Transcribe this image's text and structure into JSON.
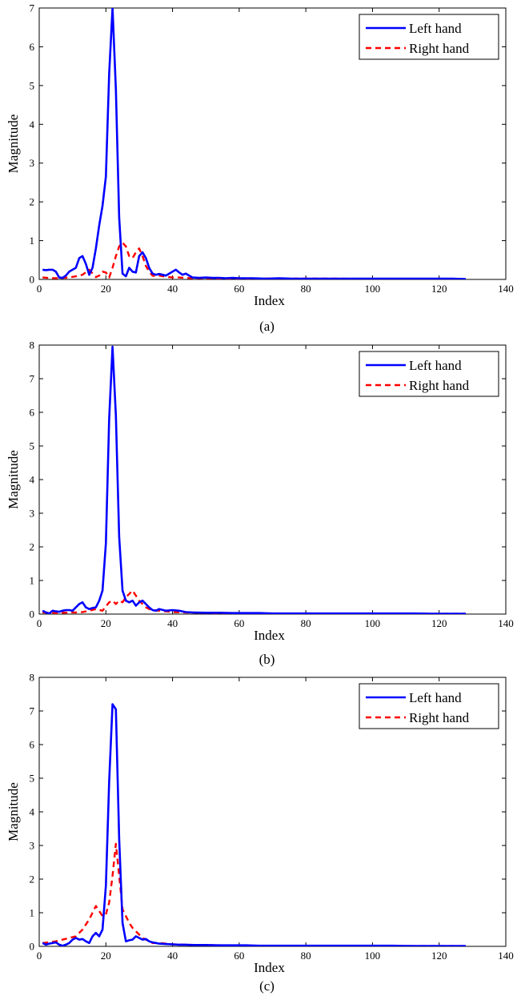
{
  "chart_data": [
    {
      "type": "line",
      "caption": "(a)",
      "xlabel": "Index",
      "ylabel": "Magnitude",
      "xlim": [
        0,
        140
      ],
      "ylim": [
        0,
        7
      ],
      "xticks": [
        0,
        20,
        40,
        60,
        80,
        100,
        120,
        140
      ],
      "yticks": [
        0,
        1,
        2,
        3,
        4,
        5,
        6,
        7
      ],
      "grid": false,
      "legend_position": "top-right",
      "series": [
        {
          "name": "Left hand",
          "color": "#0000ff",
          "style": "solid",
          "x": [
            1,
            2,
            3,
            4,
            5,
            6,
            7,
            8,
            9,
            10,
            11,
            12,
            13,
            14,
            15,
            16,
            17,
            18,
            19,
            20,
            21,
            22,
            23,
            24,
            25,
            26,
            27,
            28,
            29,
            30,
            31,
            32,
            33,
            34,
            35,
            36,
            37,
            38,
            39,
            40,
            41,
            42,
            43,
            44,
            45,
            46,
            48,
            50,
            52,
            54,
            56,
            58,
            60,
            64,
            68,
            72,
            76,
            80,
            84,
            88,
            92,
            96,
            100,
            104,
            108,
            112,
            116,
            120,
            124,
            128
          ],
          "y": [
            0.25,
            0.24,
            0.25,
            0.25,
            0.2,
            0.05,
            0.04,
            0.1,
            0.2,
            0.25,
            0.3,
            0.55,
            0.6,
            0.4,
            0.12,
            0.3,
            0.8,
            1.4,
            1.9,
            2.65,
            5.3,
            7.0,
            4.9,
            1.6,
            0.15,
            0.08,
            0.3,
            0.2,
            0.18,
            0.6,
            0.7,
            0.55,
            0.3,
            0.15,
            0.12,
            0.14,
            0.12,
            0.1,
            0.15,
            0.2,
            0.25,
            0.18,
            0.12,
            0.15,
            0.1,
            0.05,
            0.04,
            0.05,
            0.04,
            0.04,
            0.03,
            0.04,
            0.03,
            0.03,
            0.02,
            0.03,
            0.02,
            0.02,
            0.02,
            0.02,
            0.02,
            0.02,
            0.02,
            0.02,
            0.02,
            0.02,
            0.02,
            0.02,
            0.02,
            0.01
          ]
        },
        {
          "name": "Right hand",
          "color": "#ff0000",
          "style": "dashed",
          "x": [
            1,
            3,
            5,
            7,
            9,
            11,
            13,
            15,
            17,
            18,
            19,
            20,
            21,
            22,
            23,
            24,
            25,
            26,
            27,
            28,
            29,
            30,
            31,
            32,
            33,
            34,
            35,
            36,
            38,
            40,
            42,
            44,
            46,
            50,
            55,
            60,
            70,
            80,
            90,
            100,
            110,
            120,
            128
          ],
          "y": [
            0.05,
            0.04,
            0.03,
            0.04,
            0.05,
            0.08,
            0.12,
            0.25,
            0.06,
            0.1,
            0.2,
            0.18,
            0.05,
            0.3,
            0.6,
            0.85,
            0.95,
            0.85,
            0.6,
            0.55,
            0.7,
            0.8,
            0.6,
            0.35,
            0.2,
            0.1,
            0.08,
            0.1,
            0.07,
            0.05,
            0.05,
            0.04,
            0.03,
            0.03,
            0.02,
            0.02,
            0.02,
            0.02,
            0.02,
            0.01,
            0.01,
            0.01,
            0.01
          ]
        }
      ]
    },
    {
      "type": "line",
      "caption": "(b)",
      "xlabel": "Index",
      "ylabel": "Magnitude",
      "xlim": [
        0,
        140
      ],
      "ylim": [
        0,
        8
      ],
      "xticks": [
        0,
        20,
        40,
        60,
        80,
        100,
        120,
        140
      ],
      "yticks": [
        0,
        1,
        2,
        3,
        4,
        5,
        6,
        7,
        8
      ],
      "grid": false,
      "legend_position": "top-right",
      "series": [
        {
          "name": "Left hand",
          "color": "#0000ff",
          "style": "solid",
          "x": [
            1,
            2,
            3,
            4,
            5,
            6,
            7,
            8,
            9,
            10,
            11,
            12,
            13,
            14,
            15,
            16,
            17,
            18,
            19,
            20,
            21,
            22,
            23,
            24,
            25,
            26,
            27,
            28,
            29,
            30,
            31,
            32,
            33,
            34,
            35,
            36,
            38,
            40,
            42,
            44,
            46,
            50,
            54,
            58,
            62,
            66,
            70,
            76,
            82,
            88,
            94,
            100,
            106,
            112,
            118,
            124,
            128
          ],
          "y": [
            0.1,
            0.05,
            0.02,
            0.1,
            0.08,
            0.07,
            0.1,
            0.12,
            0.12,
            0.1,
            0.2,
            0.3,
            0.35,
            0.2,
            0.15,
            0.18,
            0.2,
            0.4,
            0.7,
            2.1,
            5.8,
            7.95,
            5.9,
            2.3,
            0.7,
            0.4,
            0.35,
            0.4,
            0.25,
            0.35,
            0.4,
            0.3,
            0.2,
            0.12,
            0.1,
            0.15,
            0.1,
            0.12,
            0.1,
            0.06,
            0.05,
            0.04,
            0.04,
            0.03,
            0.03,
            0.03,
            0.02,
            0.02,
            0.02,
            0.02,
            0.02,
            0.02,
            0.02,
            0.02,
            0.01,
            0.01,
            0.01
          ]
        },
        {
          "name": "Right hand",
          "color": "#ff0000",
          "style": "dashed",
          "x": [
            1,
            3,
            5,
            7,
            9,
            11,
            13,
            15,
            17,
            19,
            21,
            22,
            23,
            24,
            25,
            26,
            27,
            28,
            29,
            30,
            31,
            32,
            33,
            34,
            36,
            38,
            40,
            44,
            48,
            55,
            60,
            70,
            80,
            90,
            100,
            110,
            120,
            128
          ],
          "y": [
            0.05,
            0.04,
            0.03,
            0.04,
            0.05,
            0.05,
            0.06,
            0.1,
            0.15,
            0.1,
            0.35,
            0.4,
            0.3,
            0.4,
            0.35,
            0.5,
            0.6,
            0.7,
            0.55,
            0.4,
            0.3,
            0.2,
            0.15,
            0.12,
            0.1,
            0.08,
            0.06,
            0.05,
            0.04,
            0.03,
            0.02,
            0.02,
            0.02,
            0.02,
            0.01,
            0.01,
            0.01,
            0.01
          ]
        }
      ]
    },
    {
      "type": "line",
      "caption": "(c)",
      "xlabel": "Index",
      "ylabel": "Magnitude",
      "xlim": [
        0,
        140
      ],
      "ylim": [
        0,
        8
      ],
      "xticks": [
        0,
        20,
        40,
        60,
        80,
        100,
        120,
        140
      ],
      "yticks": [
        0,
        1,
        2,
        3,
        4,
        5,
        6,
        7,
        8
      ],
      "grid": false,
      "legend_position": "top-right",
      "series": [
        {
          "name": "Left hand",
          "color": "#0000ff",
          "style": "solid",
          "x": [
            1,
            2,
            3,
            4,
            5,
            6,
            7,
            8,
            9,
            10,
            11,
            12,
            13,
            14,
            15,
            16,
            17,
            18,
            19,
            20,
            21,
            22,
            23,
            24,
            25,
            26,
            27,
            28,
            29,
            30,
            31,
            32,
            33,
            34,
            35,
            36,
            38,
            40,
            42,
            44,
            46,
            50,
            54,
            58,
            62,
            66,
            70,
            76,
            82,
            88,
            94,
            100,
            106,
            112,
            118,
            124,
            128
          ],
          "y": [
            0.1,
            0.05,
            0.08,
            0.1,
            0.12,
            0.05,
            0.02,
            0.05,
            0.1,
            0.2,
            0.25,
            0.2,
            0.22,
            0.15,
            0.1,
            0.3,
            0.4,
            0.3,
            0.5,
            1.8,
            4.9,
            7.2,
            7.05,
            3.2,
            0.7,
            0.15,
            0.18,
            0.2,
            0.3,
            0.25,
            0.2,
            0.22,
            0.15,
            0.12,
            0.1,
            0.08,
            0.07,
            0.06,
            0.05,
            0.05,
            0.04,
            0.04,
            0.03,
            0.03,
            0.03,
            0.02,
            0.02,
            0.02,
            0.02,
            0.02,
            0.02,
            0.02,
            0.02,
            0.01,
            0.01,
            0.01,
            0.01
          ]
        },
        {
          "name": "Right hand",
          "color": "#ff0000",
          "style": "dashed",
          "x": [
            1,
            3,
            5,
            7,
            9,
            11,
            13,
            15,
            16,
            17,
            18,
            19,
            20,
            21,
            22,
            23,
            24,
            25,
            26,
            27,
            28,
            29,
            30,
            31,
            32,
            33,
            34,
            36,
            38,
            40,
            44,
            48,
            55,
            60,
            70,
            80,
            90,
            100,
            110,
            120,
            128
          ],
          "y": [
            0.1,
            0.12,
            0.15,
            0.2,
            0.25,
            0.3,
            0.5,
            0.8,
            1.0,
            1.2,
            1.05,
            0.9,
            0.95,
            1.3,
            2.1,
            3.05,
            2.1,
            1.1,
            0.9,
            0.7,
            0.55,
            0.45,
            0.35,
            0.25,
            0.2,
            0.15,
            0.1,
            0.1,
            0.08,
            0.06,
            0.05,
            0.04,
            0.03,
            0.02,
            0.02,
            0.02,
            0.02,
            0.01,
            0.01,
            0.01,
            0.01
          ]
        }
      ]
    }
  ]
}
